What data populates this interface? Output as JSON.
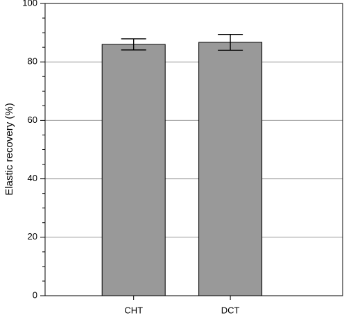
{
  "chart_data": {
    "type": "bar",
    "ylabel": "Elastic recovery (%)",
    "categories": [
      "CHT",
      "DCT"
    ],
    "values": [
      86,
      86.7
    ],
    "errors": [
      1.9,
      2.7
    ],
    "color": "#999999",
    "ylim": [
      0,
      100
    ],
    "yticks": [
      0,
      20,
      40,
      60,
      80,
      100
    ],
    "yminorticks": [
      5,
      10,
      15,
      25,
      30,
      35,
      45,
      50,
      55,
      65,
      70,
      75,
      85,
      90,
      95
    ],
    "grid": true
  }
}
